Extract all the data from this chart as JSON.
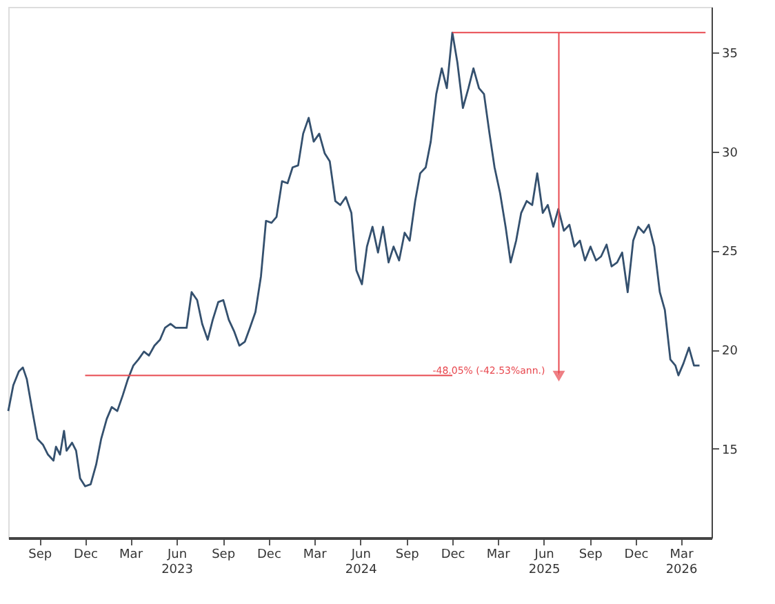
{
  "chart_data": {
    "type": "line",
    "x": [
      "2022-07-01",
      "2022-07-11",
      "2022-07-22",
      "2022-07-30",
      "2022-08-07",
      "2022-08-18",
      "2022-08-28",
      "2022-09-08",
      "2022-09-18",
      "2022-09-29",
      "2022-10-04",
      "2022-10-12",
      "2022-10-20",
      "2022-10-25",
      "2022-11-05",
      "2022-11-13",
      "2022-11-21",
      "2022-12-01",
      "2022-12-12",
      "2022-12-23",
      "2023-01-02",
      "2023-01-13",
      "2023-01-23",
      "2023-02-03",
      "2023-02-14",
      "2023-02-24",
      "2023-03-07",
      "2023-03-17",
      "2023-03-28",
      "2023-04-07",
      "2023-04-18",
      "2023-04-29",
      "2023-05-09",
      "2023-05-20",
      "2023-05-30",
      "2023-06-10",
      "2023-06-21",
      "2023-07-01",
      "2023-07-12",
      "2023-07-22",
      "2023-08-02",
      "2023-08-12",
      "2023-08-23",
      "2023-09-02",
      "2023-09-13",
      "2023-09-24",
      "2023-10-04",
      "2023-10-15",
      "2023-10-25",
      "2023-11-05",
      "2023-11-16",
      "2023-11-26",
      "2023-12-07",
      "2023-12-17",
      "2023-12-28",
      "2024-01-08",
      "2024-01-18",
      "2024-01-29",
      "2024-02-08",
      "2024-02-19",
      "2024-02-29",
      "2024-03-11",
      "2024-03-22",
      "2024-04-01",
      "2024-04-12",
      "2024-04-22",
      "2024-05-03",
      "2024-05-14",
      "2024-05-24",
      "2024-06-04",
      "2024-06-14",
      "2024-06-25",
      "2024-07-06",
      "2024-07-16",
      "2024-07-27",
      "2024-08-06",
      "2024-08-17",
      "2024-08-28",
      "2024-09-07",
      "2024-09-18",
      "2024-09-28",
      "2024-10-09",
      "2024-10-19",
      "2024-10-30",
      "2024-11-10",
      "2024-11-20",
      "2024-12-01",
      "2024-12-11",
      "2024-12-22",
      "2025-01-02",
      "2025-01-12",
      "2025-01-23",
      "2025-02-02",
      "2025-02-13",
      "2025-02-23",
      "2025-03-06",
      "2025-03-17",
      "2025-03-27",
      "2025-04-07",
      "2025-04-17",
      "2025-04-28",
      "2025-05-09",
      "2025-05-19",
      "2025-05-30",
      "2025-06-09",
      "2025-06-20",
      "2025-06-30",
      "2025-07-11",
      "2025-07-22",
      "2025-08-01",
      "2025-08-12",
      "2025-08-22",
      "2025-09-02",
      "2025-09-13",
      "2025-09-23",
      "2025-10-04",
      "2025-10-14",
      "2025-10-25",
      "2025-11-04",
      "2025-11-15",
      "2025-11-26",
      "2025-12-06",
      "2025-12-17",
      "2025-12-27",
      "2026-01-07",
      "2026-01-18",
      "2026-01-28",
      "2026-02-08",
      "2026-02-18",
      "2026-02-24",
      "2026-03-06",
      "2026-03-17",
      "2026-03-27",
      "2026-04-07"
    ],
    "series": [
      {
        "color": "#34506e",
        "values": [
          16.9,
          18.2,
          18.9,
          19.1,
          18.5,
          16.9,
          15.5,
          15.2,
          14.7,
          14.4,
          15.1,
          14.7,
          15.9,
          14.9,
          15.3,
          14.9,
          13.5,
          13.1,
          13.2,
          14.2,
          15.5,
          16.5,
          17.1,
          16.9,
          17.7,
          18.5,
          19.2,
          19.5,
          19.9,
          19.7,
          20.2,
          20.5,
          21.1,
          21.3,
          21.1,
          21.1,
          21.1,
          22.9,
          22.5,
          21.3,
          20.5,
          21.5,
          22.4,
          22.5,
          21.5,
          20.9,
          20.2,
          20.4,
          21.1,
          21.9,
          23.7,
          26.5,
          26.4,
          26.7,
          28.5,
          28.4,
          29.2,
          29.3,
          30.9,
          31.7,
          30.5,
          30.9,
          29.9,
          29.5,
          27.5,
          27.3,
          27.7,
          26.9,
          24.0,
          23.3,
          25.2,
          26.2,
          24.9,
          26.2,
          24.4,
          25.2,
          24.5,
          25.9,
          25.5,
          27.5,
          28.9,
          29.2,
          30.5,
          32.9,
          34.2,
          33.2,
          36.0,
          34.5,
          32.2,
          33.2,
          34.2,
          33.2,
          32.9,
          30.9,
          29.2,
          27.9,
          26.2,
          24.4,
          25.5,
          26.9,
          27.5,
          27.3,
          28.9,
          26.9,
          27.3,
          26.2,
          27.1,
          26.0,
          26.3,
          25.2,
          25.5,
          24.5,
          25.2,
          24.5,
          24.7,
          25.3,
          24.2,
          24.4,
          24.9,
          22.9,
          25.5,
          26.2,
          25.9,
          26.3,
          25.2,
          22.9,
          22.0,
          19.5,
          19.2,
          18.7,
          19.3,
          20.1,
          19.2,
          19.2
        ]
      }
    ],
    "xlim": [
      "2022-07-01",
      "2026-05-01"
    ],
    "xticks": [
      {
        "value": "2022-09-01",
        "label": "Sep"
      },
      {
        "value": "2022-12-01",
        "label": "Dec"
      },
      {
        "value": "2023-03-01",
        "label": "Mar"
      },
      {
        "value": "2023-06-01",
        "label": "Jun\n2023"
      },
      {
        "value": "2023-09-01",
        "label": "Sep"
      },
      {
        "value": "2023-12-01",
        "label": "Dec"
      },
      {
        "value": "2024-03-01",
        "label": "Mar"
      },
      {
        "value": "2024-06-01",
        "label": "Jun\n2024"
      },
      {
        "value": "2024-09-01",
        "label": "Sep"
      },
      {
        "value": "2024-12-01",
        "label": "Dec"
      },
      {
        "value": "2025-03-01",
        "label": "Mar"
      },
      {
        "value": "2025-06-01",
        "label": "Jun\n2025"
      },
      {
        "value": "2025-09-01",
        "label": "Sep"
      },
      {
        "value": "2025-12-01",
        "label": "Dec"
      },
      {
        "value": "2026-03-01",
        "label": "Mar\n2026"
      }
    ],
    "ylim": [
      10.5,
      37.3
    ],
    "yticks": [
      15,
      20,
      25,
      30,
      35
    ],
    "ref_lines": [
      {
        "axis": "y",
        "value": 36.0,
        "color": "#e8484f"
      },
      {
        "axis": "y",
        "value": 18.7,
        "color": "#e8484f"
      },
      {
        "axis": "x",
        "value": "2025-07-01",
        "color": "#e8484f"
      }
    ],
    "annotations": [
      {
        "text": "-48.05% (-42.53%ann.)",
        "x": "2025-07-01",
        "y": 18.7
      }
    ],
    "grid": false,
    "marker": "none",
    "line_style": "solid"
  }
}
